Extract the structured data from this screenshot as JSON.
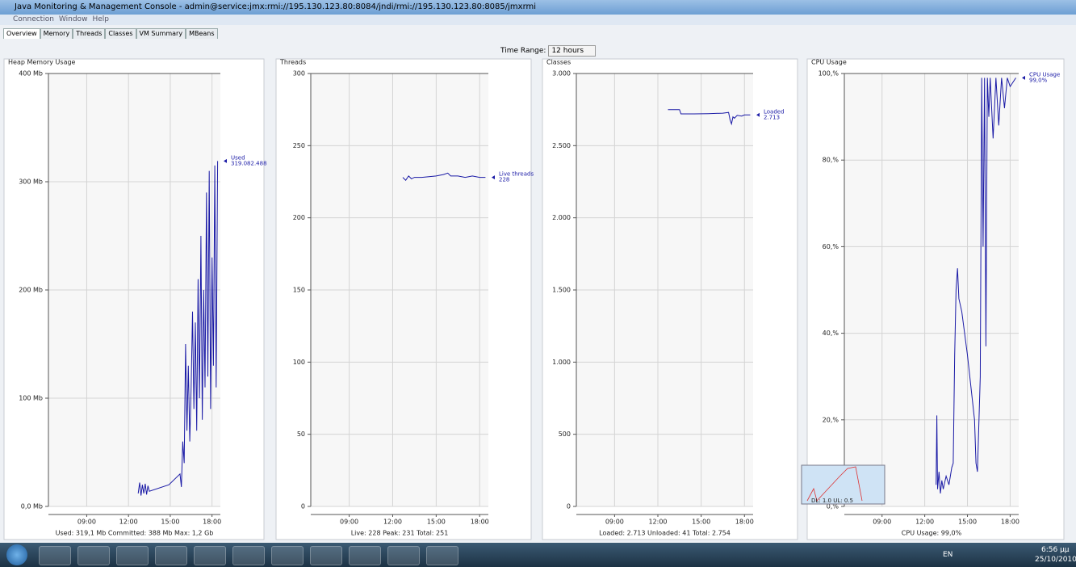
{
  "window": {
    "title": "Java Monitoring & Management Console - admin@service:jmx:rmi://195.130.123.80:8084/jndi/rmi://195.130.123.80:8085/jmxrmi",
    "menu": [
      "Connection",
      "Window",
      "Help"
    ],
    "tabs": [
      "Overview",
      "Memory",
      "Threads",
      "Classes",
      "VM Summary",
      "MBeans"
    ],
    "time_range_label": "Time Range:",
    "time_range": "12 hours"
  },
  "overlay": {
    "text": "DL: 1.0  UL: 0.5"
  },
  "taskbar": {
    "language": "EN",
    "time": "6:56 μμ",
    "date": "25/10/2010"
  },
  "chart_data": [
    {
      "type": "line",
      "title": "Heap Memory Usage",
      "summary": "Used: 319,1 Mb   Committed: 388 Mb   Max: 1,2 Gb",
      "xlim": [
        6.25,
        18.6
      ],
      "xticks": [
        {
          "value": 9,
          "label": "09:00"
        },
        {
          "value": 12,
          "label": "12:00"
        },
        {
          "value": 15,
          "label": "15:00"
        },
        {
          "value": 18,
          "label": "18:00"
        }
      ],
      "ylim": [
        0,
        400
      ],
      "yticks": [
        {
          "value": 0,
          "label": "0,0 Mb"
        },
        {
          "value": 100,
          "label": "100 Mb"
        },
        {
          "value": 200,
          "label": "200 Mb"
        },
        {
          "value": 300,
          "label": "300 Mb"
        },
        {
          "value": 400,
          "label": "400 Mb"
        }
      ],
      "grid": true,
      "x": [
        12.7,
        12.8,
        12.9,
        13.0,
        13.1,
        13.2,
        13.3,
        13.4,
        13.5,
        14.9,
        15.7,
        15.8,
        15.9,
        16.0,
        16.1,
        16.2,
        16.3,
        16.4,
        16.5,
        16.6,
        16.7,
        16.8,
        16.9,
        17.0,
        17.1,
        17.2,
        17.3,
        17.4,
        17.5,
        17.6,
        17.7,
        17.8,
        17.9,
        18.0,
        18.1,
        18.2,
        18.3,
        18.4
      ],
      "series": [
        {
          "name": "Used",
          "end_label": "319.082.488",
          "color": "#1a1aa6",
          "values": [
            12,
            22,
            10,
            20,
            12,
            21,
            11,
            19,
            14,
            20,
            30,
            18,
            60,
            40,
            150,
            70,
            130,
            60,
            110,
            180,
            90,
            170,
            70,
            210,
            100,
            250,
            80,
            200,
            110,
            290,
            120,
            310,
            90,
            230,
            130,
            315,
            110,
            319.08
          ]
        }
      ]
    },
    {
      "type": "line",
      "title": "Threads",
      "summary": "Live: 228   Peak: 231   Total: 251",
      "xlim": [
        6.35,
        18.6
      ],
      "xticks": [
        {
          "value": 9,
          "label": "09:00"
        },
        {
          "value": 12,
          "label": "12:00"
        },
        {
          "value": 15,
          "label": "15:00"
        },
        {
          "value": 18,
          "label": "18:00"
        }
      ],
      "ylim": [
        0,
        300
      ],
      "yticks": [
        0,
        50,
        100,
        150,
        200,
        250,
        300
      ],
      "grid": true,
      "x": [
        12.7,
        12.9,
        13.1,
        13.3,
        13.5,
        14.0,
        15.0,
        15.5,
        15.8,
        16.0,
        16.5,
        17.0,
        17.5,
        18.0,
        18.4
      ],
      "series": [
        {
          "name": "Live threads",
          "end_label": "228",
          "color": "#1a1aa6",
          "values": [
            228,
            226,
            229,
            227,
            228,
            228,
            229,
            230,
            231,
            229,
            229,
            228,
            229,
            228,
            228
          ]
        }
      ]
    },
    {
      "type": "line",
      "title": "Classes",
      "summary": "Loaded: 2.713   Unloaded: 41   Total: 2.754",
      "xlim": [
        6.35,
        18.6
      ],
      "xticks": [
        {
          "value": 9,
          "label": "09:00"
        },
        {
          "value": 12,
          "label": "12:00"
        },
        {
          "value": 15,
          "label": "15:00"
        },
        {
          "value": 18,
          "label": "18:00"
        }
      ],
      "ylim": [
        0,
        3000
      ],
      "yticks": [
        0,
        500,
        {
          "value": 1000,
          "label": "1.000"
        },
        {
          "value": 1500,
          "label": "1.500"
        },
        {
          "value": 2000,
          "label": "2.000"
        },
        {
          "value": 2500,
          "label": "2.500"
        },
        {
          "value": 3000,
          "label": "3.000"
        }
      ],
      "grid": true,
      "x": [
        12.7,
        13.0,
        13.5,
        13.6,
        14.5,
        15.5,
        16.5,
        16.9,
        17.0,
        17.1,
        17.2,
        17.3,
        17.5,
        17.8,
        18.0,
        18.4
      ],
      "series": [
        {
          "name": "Loaded",
          "end_label": "2.713",
          "color": "#1a1aa6",
          "values": [
            2750,
            2750,
            2750,
            2720,
            2720,
            2722,
            2725,
            2730,
            2680,
            2650,
            2700,
            2690,
            2710,
            2705,
            2713,
            2713
          ]
        }
      ]
    },
    {
      "type": "line",
      "title": "CPU Usage",
      "summary": "CPU Usage: 99,0%",
      "xlim": [
        6.35,
        18.6
      ],
      "xticks": [
        {
          "value": 9,
          "label": "09:00"
        },
        {
          "value": 12,
          "label": "12:00"
        },
        {
          "value": 15,
          "label": "15:00"
        },
        {
          "value": 18,
          "label": "18:00"
        }
      ],
      "ylim": [
        0,
        100
      ],
      "yticks": [
        {
          "value": 0,
          "label": "0,%"
        },
        {
          "value": 20,
          "label": "20,%"
        },
        {
          "value": 40,
          "label": "40,%"
        },
        {
          "value": 60,
          "label": "60,%"
        },
        {
          "value": 80,
          "label": "80,%"
        },
        {
          "value": 100,
          "label": "100,%"
        }
      ],
      "grid": true,
      "x": [
        12.8,
        12.85,
        12.9,
        13.0,
        13.1,
        13.2,
        13.3,
        13.5,
        13.7,
        13.9,
        14.0,
        14.1,
        14.2,
        14.3,
        14.4,
        14.6,
        15.0,
        15.5,
        15.6,
        15.7,
        15.9,
        16.0,
        16.1,
        16.2,
        16.3,
        16.4,
        16.5,
        16.6,
        16.8,
        17.0,
        17.2,
        17.4,
        17.6,
        17.8,
        18.0,
        18.4
      ],
      "series": [
        {
          "name": "CPU Usage",
          "end_label": "99,0%",
          "color": "#1a1aa6",
          "values": [
            5,
            21,
            4,
            8,
            3,
            6,
            4,
            7,
            5,
            9,
            10,
            35,
            50,
            55,
            48,
            45,
            35,
            20,
            10,
            8,
            30,
            99,
            60,
            99,
            37,
            99,
            90,
            99,
            85,
            99,
            88,
            99,
            92,
            99,
            97,
            99
          ]
        }
      ]
    }
  ]
}
